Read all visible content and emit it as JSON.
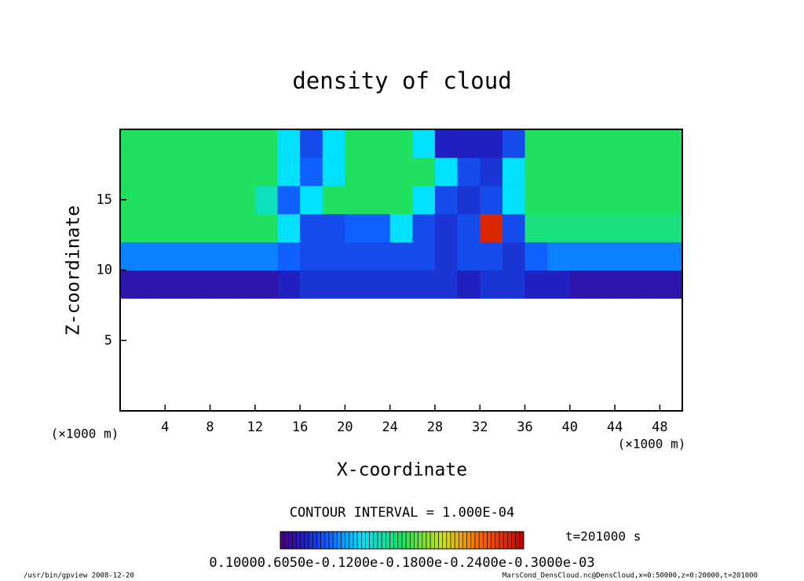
{
  "chart_data": {
    "type": "heatmap",
    "title": "density of cloud",
    "xlabel": "X-coordinate",
    "ylabel": "Z-coordinate",
    "x_unit": "(×1000 m)",
    "y_unit": "(×1000 m)",
    "xlim": [
      0,
      50
    ],
    "ylim": [
      0,
      20
    ],
    "xticks": [
      4,
      8,
      12,
      16,
      20,
      24,
      28,
      32,
      36,
      40,
      44,
      48
    ],
    "yticks": [
      5,
      10,
      15
    ],
    "contour_interval": "CONTOUR INTERVAL = 1.000E-04",
    "time_label": "t=201000 s",
    "colorbar_label": "0.10000.6050e-0.1200e-0.1800e-0.2400e-0.3000e-03",
    "colorlim": [
      0,
      0.0003
    ],
    "footer_left": "/usr/bin/gpview  2008-12-20",
    "footer_right": "MarsCond_DensCloud.nc@DensCloud,x=0:50000,z=0:20000,t=201000",
    "x": [
      1,
      3,
      5,
      7,
      9,
      11,
      13,
      15,
      17,
      19,
      21,
      23,
      25,
      27,
      29,
      31,
      33,
      35,
      37,
      39,
      41,
      43,
      45,
      47,
      49
    ],
    "y": [
      1,
      3,
      5,
      7,
      9,
      11,
      13,
      15,
      17,
      19
    ],
    "values": [
      [
        null,
        null,
        null,
        null,
        null,
        null,
        null,
        null,
        null,
        null,
        null,
        null,
        null,
        null,
        null,
        null,
        null,
        null,
        null,
        null,
        null,
        null,
        null,
        null,
        null
      ],
      [
        null,
        null,
        null,
        null,
        null,
        null,
        null,
        null,
        null,
        null,
        null,
        null,
        null,
        null,
        null,
        null,
        null,
        null,
        null,
        null,
        null,
        null,
        null,
        null,
        null
      ],
      [
        null,
        null,
        null,
        null,
        null,
        null,
        null,
        null,
        null,
        null,
        null,
        null,
        null,
        null,
        null,
        null,
        null,
        null,
        null,
        null,
        null,
        null,
        null,
        null,
        null
      ],
      [
        null,
        null,
        null,
        null,
        null,
        null,
        null,
        null,
        null,
        null,
        null,
        null,
        null,
        null,
        null,
        null,
        null,
        null,
        null,
        null,
        null,
        null,
        null,
        null,
        null
      ],
      [
        2e-05,
        2e-05,
        2e-05,
        2e-05,
        2e-05,
        2e-05,
        2e-05,
        3e-05,
        4e-05,
        4e-05,
        4e-05,
        4e-05,
        4e-05,
        4e-05,
        4e-05,
        3e-05,
        4e-05,
        4e-05,
        3e-05,
        3e-05,
        2e-05,
        2e-05,
        2e-05,
        2e-05,
        2e-05
      ],
      [
        7e-05,
        7e-05,
        7e-05,
        7e-05,
        7e-05,
        7e-05,
        7e-05,
        6e-05,
        5e-05,
        5e-05,
        5e-05,
        5e-05,
        5e-05,
        5e-05,
        4e-05,
        5e-05,
        5e-05,
        4e-05,
        6e-05,
        7e-05,
        7e-05,
        7e-05,
        7e-05,
        7e-05,
        7e-05
      ],
      [
        0.00015,
        0.00015,
        0.00015,
        0.00015,
        0.00015,
        0.00015,
        0.00015,
        0.0001,
        5e-05,
        5e-05,
        6e-05,
        6e-05,
        0.0001,
        5e-05,
        4e-05,
        5e-05,
        0.00028,
        5e-05,
        0.00014,
        0.00014,
        0.00014,
        0.00014,
        0.00014,
        0.00014,
        0.00014
      ],
      [
        0.00015,
        0.00015,
        0.00015,
        0.00015,
        0.00015,
        0.00015,
        0.00012,
        6e-05,
        0.0001,
        0.00015,
        0.00015,
        0.00015,
        0.00015,
        0.0001,
        5e-05,
        4e-05,
        5e-05,
        0.0001,
        0.00015,
        0.00015,
        0.00015,
        0.00015,
        0.00015,
        0.00015,
        0.00015
      ],
      [
        0.00015,
        0.00015,
        0.00015,
        0.00015,
        0.00015,
        0.00015,
        0.00015,
        0.0001,
        6e-05,
        0.0001,
        0.00015,
        0.00015,
        0.00015,
        0.00015,
        0.0001,
        5e-05,
        4e-05,
        0.0001,
        0.00015,
        0.00015,
        0.00015,
        0.00015,
        0.00015,
        0.00015,
        0.00015
      ],
      [
        0.00015,
        0.00015,
        0.00015,
        0.00015,
        0.00015,
        0.00015,
        0.00015,
        0.0001,
        5e-05,
        0.0001,
        0.00015,
        0.00015,
        0.00015,
        0.0001,
        3e-05,
        3e-05,
        3e-05,
        5e-05,
        0.00015,
        0.00015,
        0.00015,
        0.00015,
        0.00015,
        0.00015,
        0.00015
      ]
    ]
  }
}
